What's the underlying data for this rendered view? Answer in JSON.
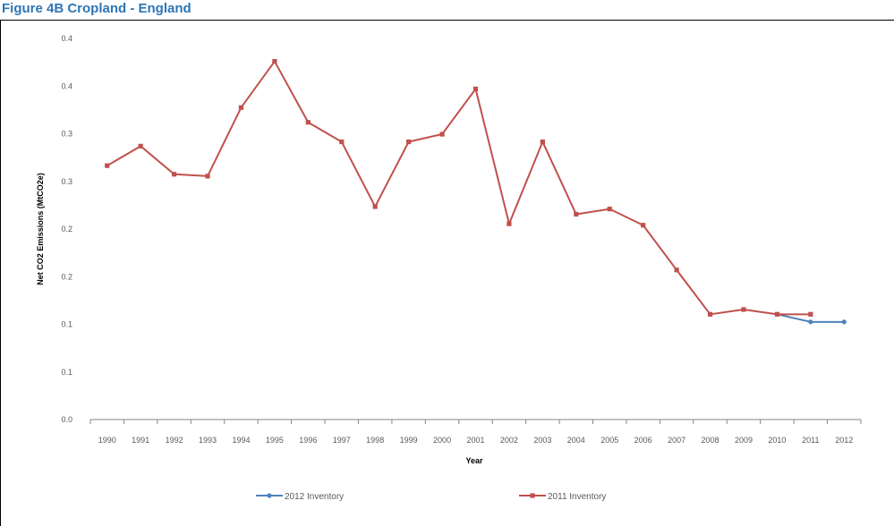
{
  "figure_title": "Figure 4B Cropland - England",
  "chart_data": {
    "type": "line",
    "xlabel": "Year",
    "ylabel": "Net CO2 Emissions (MtCO2e)",
    "y_tick_labels": [
      "0.0",
      "0.1",
      "0.1",
      "0.2",
      "0.2",
      "0.3",
      "0.3",
      "0.4",
      "0.4"
    ],
    "ylim": [
      0.0,
      0.4
    ],
    "x": [
      "1990",
      "1991",
      "1992",
      "1993",
      "1994",
      "1995",
      "1996",
      "1997",
      "1998",
      "1999",
      "2000",
      "2001",
      "2002",
      "2003",
      "2004",
      "2005",
      "2006",
      "2007",
      "2008",
      "2009",
      "2010",
      "2011",
      "2012"
    ],
    "legend_position": "bottom",
    "grid": false,
    "series": [
      {
        "name": "2012 Inventory",
        "color": "#4f81bd",
        "values": [
          null,
          null,
          null,
          null,
          null,
          null,
          null,
          null,
          null,
          null,
          null,
          null,
          null,
          null,
          null,
          null,
          null,
          null,
          null,
          null,
          0.1105,
          0.1025,
          0.1025
        ]
      },
      {
        "name": "2011 Inventory",
        "color": "#c0504d",
        "values": [
          0.2665,
          0.287,
          0.2575,
          0.2555,
          0.3275,
          0.376,
          0.312,
          0.2915,
          0.2235,
          0.2915,
          0.2995,
          0.347,
          0.2055,
          0.2915,
          0.2155,
          0.221,
          0.204,
          0.157,
          0.1105,
          0.1155,
          0.1105,
          0.1105,
          null
        ]
      }
    ]
  }
}
